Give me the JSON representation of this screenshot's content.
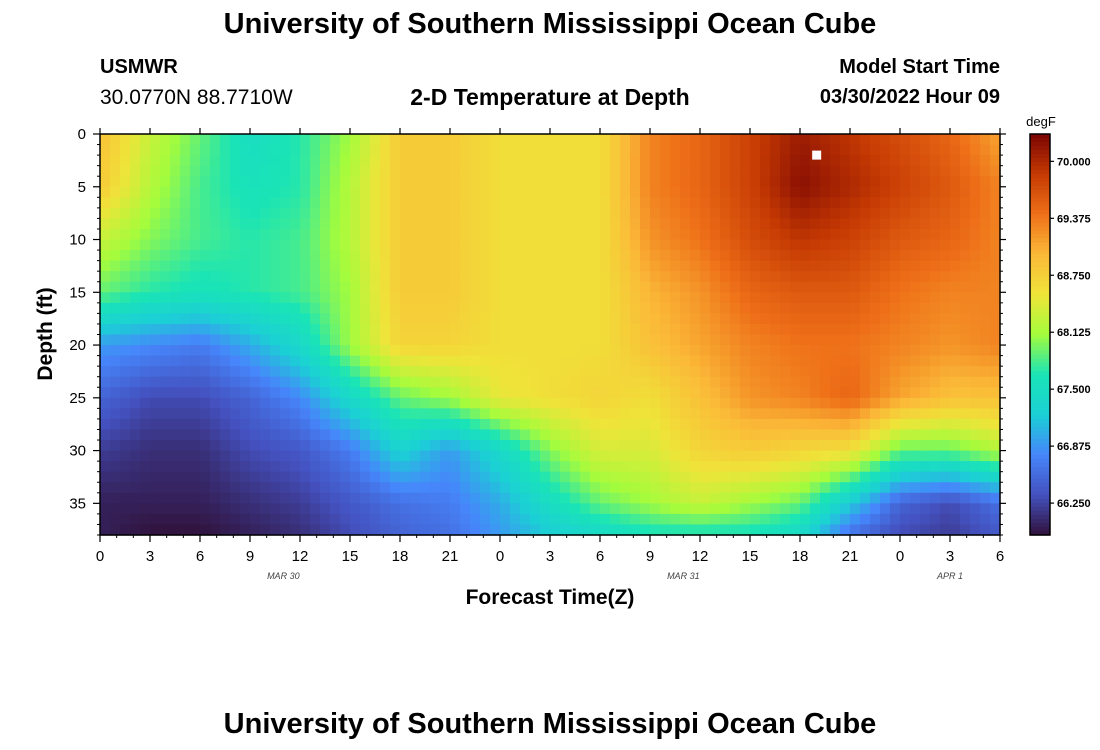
{
  "header": {
    "title": "University of Southern Mississippi Ocean Cube",
    "station": "USMWR",
    "coordinates": "30.0770N  88.7710W",
    "subtitle": "2-D Temperature at Depth",
    "model_start_label": "Model Start Time",
    "model_start_value": "03/30/2022 Hour 09"
  },
  "footer": {
    "title": "University of Southern Mississippi Ocean Cube"
  },
  "chart_data": {
    "type": "heatmap",
    "title": "2-D Temperature at Depth",
    "xlabel": "Forecast Time(Z)",
    "ylabel": "Depth (ft)",
    "x_tick_labels": [
      "0",
      "3",
      "6",
      "9",
      "12",
      "15",
      "18",
      "21",
      "0",
      "3",
      "6",
      "9",
      "12",
      "15",
      "18",
      "21",
      "0",
      "3",
      "6"
    ],
    "x_range_hours": [
      0,
      54
    ],
    "date_labels": [
      {
        "hour": 11,
        "label": "MAR 30"
      },
      {
        "hour": 35,
        "label": "MAR 31"
      },
      {
        "hour": 51,
        "label": "APR 1"
      }
    ],
    "y_ticks": [
      0,
      5,
      10,
      15,
      20,
      25,
      30,
      35
    ],
    "y_range_ft": [
      0,
      38
    ],
    "colorbar": {
      "unit": "degF",
      "ticks": [
        "70.000",
        "69.375",
        "68.750",
        "68.125",
        "67.500",
        "66.875",
        "66.250"
      ],
      "range": [
        65.9,
        70.3
      ]
    },
    "grid": {
      "depths_ft": [
        0,
        5,
        10,
        15,
        20,
        25,
        30,
        35,
        38
      ],
      "hours": [
        0,
        3,
        6,
        9,
        12,
        15,
        18,
        21,
        24,
        27,
        30,
        33,
        36,
        39,
        42,
        45,
        48,
        51,
        54
      ],
      "values_degF": [
        [
          68.9,
          68.3,
          67.9,
          67.5,
          67.7,
          68.1,
          68.8,
          68.8,
          68.6,
          68.6,
          68.6,
          69.3,
          69.5,
          69.8,
          70.1,
          69.9,
          69.7,
          69.5,
          69.1
        ],
        [
          68.8,
          68.2,
          67.8,
          67.6,
          67.7,
          68.2,
          68.8,
          68.8,
          68.6,
          68.6,
          68.6,
          69.3,
          69.5,
          69.8,
          70.2,
          70.0,
          69.8,
          69.6,
          69.3
        ],
        [
          68.3,
          68.0,
          67.8,
          67.7,
          67.8,
          68.2,
          68.8,
          68.8,
          68.6,
          68.6,
          68.6,
          69.2,
          69.4,
          69.7,
          69.9,
          69.8,
          69.6,
          69.5,
          69.3
        ],
        [
          67.9,
          67.7,
          67.6,
          67.7,
          67.8,
          68.1,
          68.8,
          68.8,
          68.6,
          68.6,
          68.6,
          69.0,
          69.2,
          69.5,
          69.6,
          69.6,
          69.4,
          69.3,
          69.3
        ],
        [
          66.9,
          66.8,
          66.7,
          67.0,
          67.4,
          68.1,
          68.7,
          68.7,
          68.6,
          68.6,
          68.6,
          68.9,
          69.1,
          69.3,
          69.4,
          69.4,
          69.3,
          69.2,
          69.3
        ],
        [
          66.5,
          66.3,
          66.3,
          66.5,
          66.8,
          67.4,
          67.9,
          68.1,
          68.5,
          68.6,
          68.7,
          68.6,
          68.9,
          69.2,
          69.3,
          69.5,
          69.1,
          68.9,
          68.9
        ],
        [
          66.2,
          66.1,
          66.1,
          66.3,
          66.4,
          66.7,
          67.3,
          66.9,
          67.4,
          68.0,
          68.4,
          68.4,
          68.7,
          68.8,
          68.7,
          68.6,
          67.9,
          67.9,
          68.2
        ],
        [
          66.0,
          66.0,
          66.0,
          66.1,
          66.2,
          66.4,
          66.6,
          66.7,
          67.0,
          67.5,
          67.9,
          68.1,
          68.3,
          68.1,
          67.9,
          67.2,
          66.5,
          66.3,
          66.6
        ],
        [
          66.0,
          65.9,
          65.9,
          66.0,
          66.1,
          66.3,
          66.5,
          66.6,
          66.9,
          67.2,
          67.4,
          67.6,
          67.6,
          67.6,
          67.4,
          66.6,
          66.3,
          66.2,
          66.4
        ]
      ]
    },
    "annotations": [
      {
        "type": "marker",
        "hour": 43,
        "depth_ft": 2,
        "color": "#ffffff"
      }
    ]
  }
}
